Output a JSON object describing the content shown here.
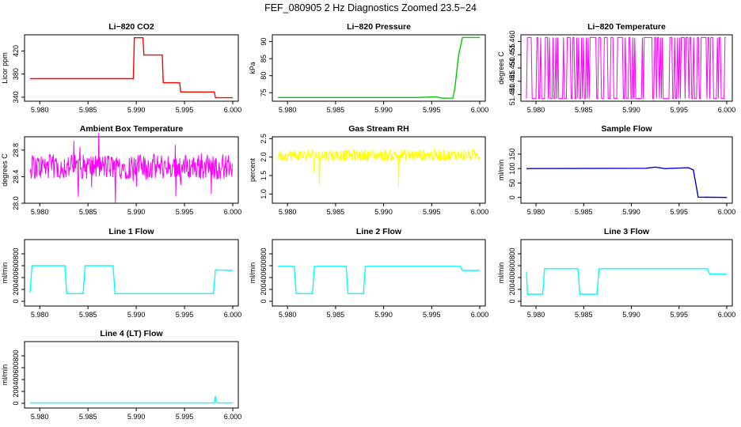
{
  "figure": {
    "title": "FEF_080905  2 Hz Diagnostics Zoomed 23.5−24"
  },
  "chart_data": [
    {
      "type": "line",
      "title": "Li−820 CO2",
      "ylabel": "Licor ppm",
      "color": "#ff0000",
      "xlim": [
        5.979,
        6.0
      ],
      "xticks": [
        "5.980",
        "5.985",
        "5.990",
        "5.995",
        "6.000"
      ],
      "ylim": [
        333,
        448
      ],
      "yticks": [
        "340",
        "380",
        "420"
      ],
      "series": [
        {
          "name": "CO2",
          "x": [
            5.979,
            5.9897,
            5.9898,
            5.9907,
            5.9908,
            5.9927,
            5.9928,
            5.9945,
            5.9946,
            5.9981,
            5.9982,
            6.0
          ],
          "y": [
            372,
            372,
            443,
            443,
            413,
            413,
            365,
            365,
            349,
            349,
            339,
            339
          ]
        }
      ]
    },
    {
      "type": "line",
      "title": "Li−820 Pressure",
      "ylabel": "kPa",
      "color": "#00cc00",
      "xlim": [
        5.979,
        6.0
      ],
      "xticks": [
        "5.980",
        "5.985",
        "5.990",
        "5.995",
        "6.000"
      ],
      "ylim": [
        72.5,
        92
      ],
      "yticks": [
        "75",
        "80",
        "85",
        "90"
      ],
      "series": [
        {
          "name": "Pressure",
          "x": [
            5.979,
            5.9935,
            5.9955,
            5.996,
            5.9972,
            5.9974,
            5.9978,
            5.9982,
            6.0
          ],
          "y": [
            73.6,
            73.6,
            73.8,
            73.4,
            73.4,
            76,
            86,
            91.2,
            91.2
          ]
        }
      ]
    },
    {
      "type": "line",
      "title": "Li−820 Temperature",
      "ylabel": "degrees C",
      "color": "#ff00ff",
      "xlim": [
        5.979,
        6.0
      ],
      "xticks": [
        "5.980",
        "5.985",
        "5.990",
        "5.995",
        "6.000"
      ],
      "ylim": [
        51.4375,
        51.4625
      ],
      "yticks": [
        "51.440",
        "51.445",
        "51.450",
        "51.455",
        "51.460"
      ],
      "series": [
        {
          "name": "Temperature",
          "x": [
            5.979,
            6.0
          ],
          "y": [
            51.4385,
            51.4615
          ]
        }
      ]
    },
    {
      "type": "line",
      "title": "Ambient Box Temperature",
      "ylabel": "degrees C",
      "color": "#ff00ff",
      "xlim": [
        5.979,
        6.0
      ],
      "xticks": [
        "5.980",
        "5.985",
        "5.990",
        "5.995",
        "6.000"
      ],
      "ylim": [
        28.0,
        29.0
      ],
      "yticks": [
        "28.0",
        "28.4",
        "28.8"
      ],
      "series": [
        {
          "name": "Ambient",
          "x": [
            5.979,
            6.0
          ],
          "y": [
            28.55,
            28.55
          ]
        }
      ]
    },
    {
      "type": "line",
      "title": "Gas Stream RH",
      "ylabel": "percent",
      "color": "#ffff00",
      "xlim": [
        5.979,
        6.0
      ],
      "xticks": [
        "5.980",
        "5.985",
        "5.990",
        "5.995",
        "6.000"
      ],
      "ylim": [
        0.75,
        2.55
      ],
      "yticks": [
        "1.0",
        "1.5",
        "2.0",
        "2.5"
      ],
      "series": [
        {
          "name": "RH",
          "x": [
            5.979,
            6.0
          ],
          "y": [
            2.05,
            2.05
          ]
        }
      ]
    },
    {
      "type": "line",
      "title": "Sample Flow",
      "ylabel": "ml/min",
      "color": "#0000cc",
      "xlim": [
        5.979,
        6.0
      ],
      "xticks": [
        "5.980",
        "5.985",
        "5.990",
        "5.995",
        "6.000"
      ],
      "ylim": [
        -20,
        210
      ],
      "yticks": [
        "0",
        "50",
        "100",
        "150"
      ],
      "series": [
        {
          "name": "Sample",
          "x": [
            5.979,
            5.9915,
            5.9925,
            5.9935,
            5.996,
            5.9965,
            5.9968,
            5.997,
            6.0
          ],
          "y": [
            100,
            101,
            105,
            100,
            103,
            95,
            40,
            1,
            0
          ]
        }
      ]
    },
    {
      "type": "line",
      "title": "Line 1 Flow",
      "ylabel": "ml/min",
      "color": "#00ffff",
      "xlim": [
        5.979,
        6.0
      ],
      "xticks": [
        "5.980",
        "5.985",
        "5.990",
        "5.995",
        "6.000"
      ],
      "ylim": [
        -80,
        1040
      ],
      "yticks": [
        "0",
        "200",
        "400",
        "600",
        "800"
      ],
      "series": [
        {
          "name": "Line 1",
          "x": [
            5.979,
            5.9792,
            5.9826,
            5.9828,
            5.9845,
            5.9847,
            5.9876,
            5.9878,
            5.998,
            5.9982,
            6.0
          ],
          "y": [
            150,
            600,
            600,
            130,
            130,
            600,
            600,
            130,
            130,
            530,
            520
          ]
        }
      ]
    },
    {
      "type": "line",
      "title": "Line 2 Flow",
      "ylabel": "ml/min",
      "color": "#00ffff",
      "xlim": [
        5.979,
        6.0
      ],
      "xticks": [
        "5.980",
        "5.985",
        "5.990",
        "5.995",
        "6.000"
      ],
      "ylim": [
        -80,
        1040
      ],
      "yticks": [
        "0",
        "200",
        "400",
        "600",
        "800"
      ],
      "series": [
        {
          "name": "Line 2",
          "x": [
            5.979,
            5.9807,
            5.9809,
            5.9826,
            5.9828,
            5.9861,
            5.9863,
            5.9879,
            5.9881,
            5.998,
            5.9982,
            6.0
          ],
          "y": [
            590,
            590,
            130,
            130,
            590,
            590,
            130,
            130,
            590,
            590,
            520,
            520
          ]
        }
      ]
    },
    {
      "type": "line",
      "title": "Line 3 Flow",
      "ylabel": "ml/min",
      "color": "#00ffff",
      "xlim": [
        5.979,
        6.0
      ],
      "xticks": [
        "5.980",
        "5.985",
        "5.990",
        "5.995",
        "6.000"
      ],
      "ylim": [
        -80,
        1040
      ],
      "yticks": [
        "0",
        "200",
        "400",
        "600",
        "800"
      ],
      "series": [
        {
          "name": "Line 3",
          "x": [
            5.979,
            5.9791,
            5.9807,
            5.9809,
            5.9844,
            5.9846,
            5.9864,
            5.9866,
            5.998,
            5.9982,
            6.0
          ],
          "y": [
            500,
            120,
            120,
            550,
            550,
            120,
            120,
            550,
            550,
            460,
            460
          ]
        }
      ]
    },
    {
      "type": "line",
      "title": "Line 4 (LT) Flow",
      "ylabel": "ml/min",
      "color": "#00ffff",
      "xlim": [
        5.979,
        6.0
      ],
      "xticks": [
        "5.980",
        "5.985",
        "5.990",
        "5.995",
        "6.000"
      ],
      "ylim": [
        -80,
        1040
      ],
      "yticks": [
        "0",
        "200",
        "400",
        "600",
        "800"
      ],
      "series": [
        {
          "name": "Line 4",
          "x": [
            5.979,
            5.9981,
            5.9982,
            5.9983,
            6.0
          ],
          "y": [
            5,
            5,
            120,
            5,
            5
          ]
        }
      ]
    }
  ]
}
